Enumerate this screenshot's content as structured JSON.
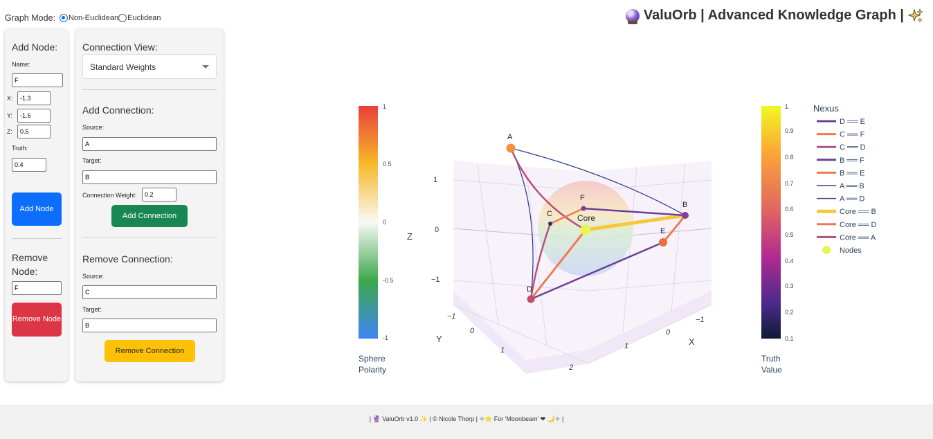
{
  "graph_mode": {
    "label": "Graph Mode:",
    "options": [
      "Non-Euclidean",
      "Euclidean"
    ],
    "selected": "Non-Euclidean"
  },
  "app_title": "ValuOrb | Advanced Knowledge Graph |",
  "add_node": {
    "heading": "Add Node:",
    "name_label": "Name:",
    "name_value": "F",
    "x_label": "X:",
    "x_value": "-1.3",
    "y_label": "Y:",
    "y_value": "-1.6",
    "z_label": "Z:",
    "z_value": "0.5",
    "truth_label": "Truth:",
    "truth_value": "0.4",
    "button": "Add Node"
  },
  "remove_node": {
    "heading": "Remove Node:",
    "value": "F",
    "button": "Remove Node"
  },
  "connection_view": {
    "heading": "Connection View:",
    "selected": "Standard Weights"
  },
  "add_connection": {
    "heading": "Add Connection:",
    "source_label": "Source:",
    "source_value": "A",
    "target_label": "Target:",
    "target_value": "B",
    "weight_label": "Connection Weight:",
    "weight_value": "0.2",
    "button": "Add Connection"
  },
  "remove_connection": {
    "heading": "Remove Connection:",
    "source_label": "Source:",
    "source_value": "C",
    "target_label": "Target:",
    "target_value": "B",
    "button": "Remove Connection"
  },
  "plot": {
    "sphere_colorbar": {
      "title": [
        "Sphere",
        "Polarity"
      ],
      "ticks": [
        "1",
        "0.5",
        "0",
        "-0.5",
        "-1"
      ]
    },
    "truth_colorbar": {
      "title": [
        "Truth",
        "Value"
      ],
      "ticks": [
        "1",
        "0.9",
        "0.8",
        "0.7",
        "0.6",
        "0.5",
        "0.4",
        "0.3",
        "0.2",
        "0.1"
      ]
    },
    "axes": {
      "z_title": "Z",
      "z_ticks": [
        "1",
        "0",
        "−1"
      ],
      "y_title": "Y",
      "y_ticks": [
        "−1",
        "0",
        "1",
        "2"
      ],
      "x_title": "X",
      "x_ticks": [
        "−1",
        "0",
        "1"
      ]
    },
    "nodes": [
      {
        "name": "A",
        "color": "#f58f3b"
      },
      {
        "name": "B",
        "color": "#8c3d98"
      },
      {
        "name": "C",
        "color": "#2b2f6e"
      },
      {
        "name": "D",
        "color": "#c24c6a"
      },
      {
        "name": "E",
        "color": "#ee6d3f"
      },
      {
        "name": "F",
        "color": "#7b3a94"
      },
      {
        "name": "Core",
        "color": "#e9f554"
      }
    ],
    "legend": {
      "title": "Nexus",
      "items": [
        {
          "label": "D ══ E",
          "color": "#6b3f98",
          "kind": "line"
        },
        {
          "label": "C ══ F",
          "color": "#f07a4e",
          "kind": "line"
        },
        {
          "label": "C ══ D",
          "color": "#b5507b",
          "kind": "line"
        },
        {
          "label": "B ══ F",
          "color": "#6b3f98",
          "kind": "line"
        },
        {
          "label": "B ══ E",
          "color": "#f07a4e",
          "kind": "line"
        },
        {
          "label": "A ══ B",
          "color": "#3a3f8f",
          "kind": "thin"
        },
        {
          "label": "A ══ D",
          "color": "#3a3f8f",
          "kind": "thin"
        },
        {
          "label": "Core ══ B",
          "color": "#f7c73a",
          "kind": "thick"
        },
        {
          "label": "Core ══ D",
          "color": "#f07a4e",
          "kind": "line"
        },
        {
          "label": "Core ══ A",
          "color": "#b5507b",
          "kind": "line"
        },
        {
          "label": "Nodes",
          "color": "#e9f554",
          "kind": "dot"
        }
      ]
    }
  },
  "footer": "| 🔮 ValuOrb v1.0 ✨ | © Nicole Thorp | ✧⭐ For 'Moonbeam' ❤ 🌙✧ |"
}
